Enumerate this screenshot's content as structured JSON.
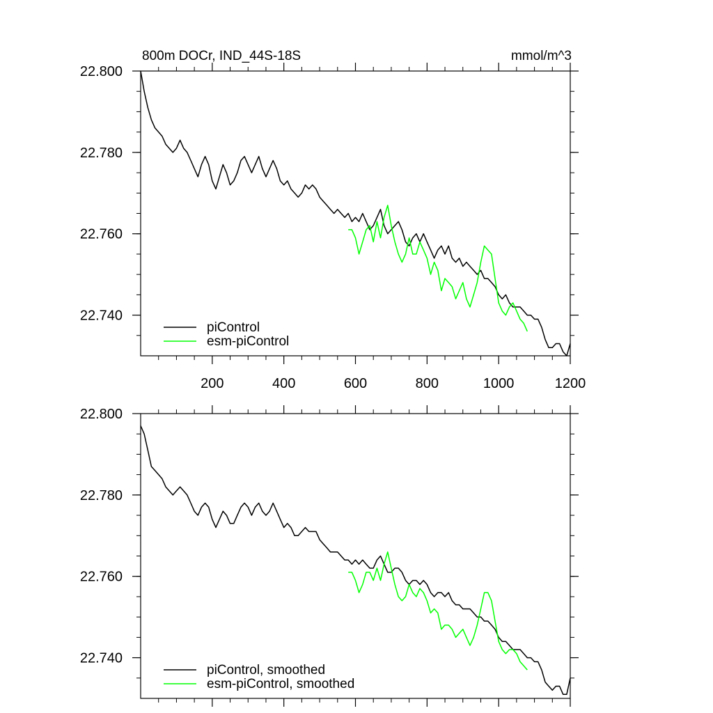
{
  "chart_data": [
    {
      "type": "line",
      "title": "800m DOCr, IND_44S-18S",
      "units": "mmol/m^3",
      "xlim": [
        0,
        1200
      ],
      "ylim": [
        22.73,
        22.8
      ],
      "x_ticks": [
        200,
        400,
        600,
        800,
        1000,
        1200
      ],
      "x_tick_labels": [
        "200",
        "400",
        "600",
        "800",
        "1000",
        "1200"
      ],
      "y_ticks": [
        22.8,
        22.78,
        22.76,
        22.74
      ],
      "y_tick_labels": [
        "22.800",
        "22.780",
        "22.760",
        "22.740"
      ],
      "grid": false,
      "legend_position": "bottom-left",
      "series": [
        {
          "name": "piControl",
          "color": "#000000",
          "x": [
            0,
            10,
            20,
            30,
            40,
            50,
            60,
            70,
            80,
            90,
            100,
            110,
            120,
            130,
            140,
            150,
            160,
            170,
            180,
            190,
            200,
            210,
            220,
            230,
            240,
            250,
            260,
            270,
            280,
            290,
            300,
            310,
            320,
            330,
            340,
            350,
            360,
            370,
            380,
            390,
            400,
            410,
            420,
            430,
            440,
            450,
            460,
            470,
            480,
            490,
            500,
            510,
            520,
            530,
            540,
            550,
            560,
            570,
            580,
            590,
            600,
            610,
            620,
            630,
            640,
            650,
            660,
            670,
            680,
            690,
            700,
            710,
            720,
            730,
            740,
            750,
            760,
            770,
            780,
            790,
            800,
            810,
            820,
            830,
            840,
            850,
            860,
            870,
            880,
            890,
            900,
            910,
            920,
            930,
            940,
            950,
            960,
            970,
            980,
            990,
            1000,
            1010,
            1020,
            1030,
            1040,
            1050,
            1060,
            1070,
            1080,
            1090,
            1100,
            1110,
            1120,
            1130,
            1140,
            1150,
            1160,
            1170,
            1180,
            1190,
            1200
          ],
          "y": [
            22.8,
            22.795,
            22.791,
            22.788,
            22.786,
            22.785,
            22.784,
            22.782,
            22.781,
            22.78,
            22.781,
            22.783,
            22.781,
            22.78,
            22.778,
            22.776,
            22.774,
            22.777,
            22.779,
            22.777,
            22.773,
            22.771,
            22.774,
            22.777,
            22.775,
            22.772,
            22.773,
            22.775,
            22.778,
            22.779,
            22.777,
            22.775,
            22.777,
            22.779,
            22.776,
            22.774,
            22.776,
            22.778,
            22.776,
            22.773,
            22.772,
            22.773,
            22.771,
            22.77,
            22.769,
            22.77,
            22.772,
            22.771,
            22.772,
            22.771,
            22.769,
            22.768,
            22.767,
            22.766,
            22.765,
            22.766,
            22.765,
            22.764,
            22.765,
            22.763,
            22.764,
            22.763,
            22.765,
            22.763,
            22.761,
            22.762,
            22.764,
            22.766,
            22.762,
            22.76,
            22.761,
            22.762,
            22.763,
            22.761,
            22.758,
            22.757,
            22.759,
            22.76,
            22.758,
            22.76,
            22.758,
            22.756,
            22.754,
            22.756,
            22.757,
            22.755,
            22.757,
            22.754,
            22.753,
            22.754,
            22.752,
            22.753,
            22.752,
            22.751,
            22.75,
            22.751,
            22.749,
            22.749,
            22.748,
            22.747,
            22.745,
            22.744,
            22.745,
            22.743,
            22.742,
            22.742,
            22.742,
            22.741,
            22.74,
            22.74,
            22.739,
            22.739,
            22.737,
            22.734,
            22.732,
            22.732,
            22.733,
            22.733,
            22.731,
            22.73,
            22.733
          ]
        },
        {
          "name": "esm-piControl",
          "color": "#00ff00",
          "x": [
            580,
            590,
            600,
            610,
            620,
            630,
            640,
            650,
            660,
            670,
            680,
            690,
            700,
            710,
            720,
            730,
            740,
            750,
            760,
            770,
            780,
            790,
            800,
            810,
            820,
            830,
            840,
            850,
            860,
            870,
            880,
            890,
            900,
            910,
            920,
            930,
            940,
            950,
            960,
            970,
            980,
            990,
            1000,
            1010,
            1020,
            1030,
            1040,
            1050,
            1060,
            1070,
            1080
          ],
          "y": [
            22.761,
            22.761,
            22.759,
            22.755,
            22.758,
            22.761,
            22.762,
            22.758,
            22.763,
            22.759,
            22.764,
            22.767,
            22.762,
            22.758,
            22.755,
            22.753,
            22.755,
            22.759,
            22.755,
            22.755,
            22.758,
            22.756,
            22.754,
            22.75,
            22.753,
            22.751,
            22.746,
            22.749,
            22.748,
            22.747,
            22.744,
            22.746,
            22.748,
            22.744,
            22.742,
            22.745,
            22.748,
            22.753,
            22.757,
            22.756,
            22.755,
            22.749,
            22.743,
            22.741,
            22.74,
            22.742,
            22.743,
            22.741,
            22.739,
            22.738,
            22.736
          ]
        }
      ]
    },
    {
      "type": "line",
      "title": "",
      "xlim": [
        0,
        1200
      ],
      "ylim": [
        22.73,
        22.8
      ],
      "x_ticks": [
        200,
        400,
        600,
        800,
        1000,
        1200
      ],
      "y_ticks": [
        22.8,
        22.78,
        22.76,
        22.74
      ],
      "y_tick_labels": [
        "22.800",
        "22.780",
        "22.760",
        "22.740"
      ],
      "grid": false,
      "legend_position": "bottom-left",
      "series": [
        {
          "name": "piControl, smoothed",
          "color": "#000000",
          "x": [
            0,
            10,
            20,
            30,
            40,
            50,
            60,
            70,
            80,
            90,
            100,
            110,
            120,
            130,
            140,
            150,
            160,
            170,
            180,
            190,
            200,
            210,
            220,
            230,
            240,
            250,
            260,
            270,
            280,
            290,
            300,
            310,
            320,
            330,
            340,
            350,
            360,
            370,
            380,
            390,
            400,
            410,
            420,
            430,
            440,
            450,
            460,
            470,
            480,
            490,
            500,
            510,
            520,
            530,
            540,
            550,
            560,
            570,
            580,
            590,
            600,
            610,
            620,
            630,
            640,
            650,
            660,
            670,
            680,
            690,
            700,
            710,
            720,
            730,
            740,
            750,
            760,
            770,
            780,
            790,
            800,
            810,
            820,
            830,
            840,
            850,
            860,
            870,
            880,
            890,
            900,
            910,
            920,
            930,
            940,
            950,
            960,
            970,
            980,
            990,
            1000,
            1010,
            1020,
            1030,
            1040,
            1050,
            1060,
            1070,
            1080,
            1090,
            1100,
            1110,
            1120,
            1130,
            1140,
            1150,
            1160,
            1170,
            1180,
            1190,
            1200
          ],
          "y": [
            22.797,
            22.795,
            22.791,
            22.787,
            22.786,
            22.785,
            22.784,
            22.782,
            22.781,
            22.78,
            22.781,
            22.782,
            22.781,
            22.78,
            22.778,
            22.776,
            22.775,
            22.777,
            22.778,
            22.777,
            22.774,
            22.772,
            22.774,
            22.776,
            22.775,
            22.773,
            22.773,
            22.775,
            22.777,
            22.778,
            22.777,
            22.775,
            22.777,
            22.778,
            22.776,
            22.775,
            22.776,
            22.778,
            22.776,
            22.774,
            22.772,
            22.773,
            22.772,
            22.77,
            22.77,
            22.771,
            22.772,
            22.771,
            22.771,
            22.771,
            22.769,
            22.768,
            22.767,
            22.766,
            22.766,
            22.766,
            22.765,
            22.764,
            22.764,
            22.763,
            22.764,
            22.763,
            22.764,
            22.763,
            22.762,
            22.762,
            22.764,
            22.765,
            22.763,
            22.761,
            22.761,
            22.762,
            22.762,
            22.761,
            22.759,
            22.758,
            22.759,
            22.759,
            22.758,
            22.759,
            22.758,
            22.756,
            22.755,
            22.756,
            22.756,
            22.755,
            22.756,
            22.754,
            22.753,
            22.753,
            22.752,
            22.752,
            22.752,
            22.751,
            22.75,
            22.75,
            22.749,
            22.749,
            22.748,
            22.747,
            22.745,
            22.744,
            22.744,
            22.743,
            22.742,
            22.742,
            22.742,
            22.741,
            22.74,
            22.74,
            22.739,
            22.739,
            22.737,
            22.734,
            22.733,
            22.732,
            22.733,
            22.733,
            22.731,
            22.731,
            22.735
          ]
        },
        {
          "name": "esm-piControl, smoothed",
          "color": "#00ff00",
          "x": [
            580,
            590,
            600,
            610,
            620,
            630,
            640,
            650,
            660,
            670,
            680,
            690,
            700,
            710,
            720,
            730,
            740,
            750,
            760,
            770,
            780,
            790,
            800,
            810,
            820,
            830,
            840,
            850,
            860,
            870,
            880,
            890,
            900,
            910,
            920,
            930,
            940,
            950,
            960,
            970,
            980,
            990,
            1000,
            1010,
            1020,
            1030,
            1040,
            1050,
            1060,
            1070,
            1080
          ],
          "y": [
            22.761,
            22.761,
            22.759,
            22.756,
            22.758,
            22.761,
            22.761,
            22.759,
            22.762,
            22.759,
            22.763,
            22.766,
            22.762,
            22.758,
            22.755,
            22.754,
            22.755,
            22.758,
            22.756,
            22.755,
            22.757,
            22.756,
            22.754,
            22.751,
            22.752,
            22.751,
            22.747,
            22.748,
            22.748,
            22.747,
            22.745,
            22.746,
            22.747,
            22.745,
            22.743,
            22.745,
            22.748,
            22.752,
            22.756,
            22.756,
            22.754,
            22.749,
            22.744,
            22.742,
            22.741,
            22.742,
            22.742,
            22.741,
            22.739,
            22.738,
            22.737
          ]
        }
      ]
    }
  ]
}
